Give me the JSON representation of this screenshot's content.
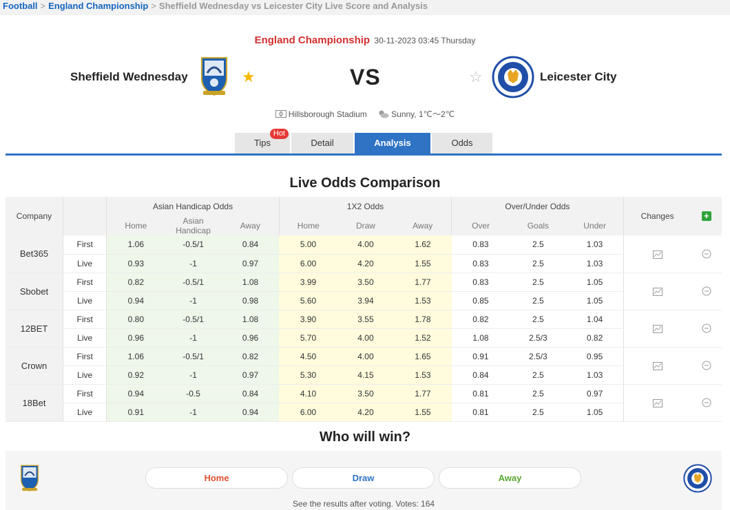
{
  "breadcrumb": {
    "football": "Football",
    "league": "England Championship",
    "current": "Sheffield Wednesday vs Leicester City Live Score and Analysis",
    "sep": ">"
  },
  "match": {
    "league": "England Championship",
    "datetime": "30-11-2023 03:45 Thursday",
    "home": "Sheffield Wednesday",
    "away": "Leicester City",
    "vs": "VS",
    "venue": "Hillsborough Stadium",
    "weather": "Sunny, 1℃～2℃",
    "home_favorite": true,
    "away_favorite": false
  },
  "tabs": [
    {
      "label": "Tips",
      "badge": "Hot"
    },
    {
      "label": "Detail"
    },
    {
      "label": "Analysis",
      "active": true
    },
    {
      "label": "Odds"
    }
  ],
  "odds": {
    "title": "Live Odds Comparison",
    "headers": {
      "company": "Company",
      "asian": "Asian Handicap Odds",
      "x12": "1X2 Odds",
      "ou": "Over/Under Odds",
      "changes": "Changes",
      "asian_sub": [
        "Home",
        "Asian Handicap",
        "Away"
      ],
      "x12_sub": [
        "Home",
        "Draw",
        "Away"
      ],
      "ou_sub": [
        "Over",
        "Goals",
        "Under"
      ]
    },
    "rows": [
      {
        "company": "Bet365",
        "lines": [
          {
            "label": "First",
            "ah": [
              "1.06",
              "-0.5/1",
              "0.84"
            ],
            "x12": [
              "5.00",
              "4.00",
              "1.62"
            ],
            "ou": [
              "0.83",
              "2.5",
              "1.03"
            ]
          },
          {
            "label": "Live",
            "ah": [
              "0.93",
              "-1",
              "0.97"
            ],
            "x12": [
              "6.00",
              "4.20",
              "1.55"
            ],
            "ou": [
              "0.83",
              "2.5",
              "1.03"
            ]
          }
        ]
      },
      {
        "company": "Sbobet",
        "lines": [
          {
            "label": "First",
            "ah": [
              "0.82",
              "-0.5/1",
              "1.08"
            ],
            "x12": [
              "3.99",
              "3.50",
              "1.77"
            ],
            "ou": [
              "0.83",
              "2.5",
              "1.05"
            ]
          },
          {
            "label": "Live",
            "ah": [
              "0.94",
              "-1",
              "0.98"
            ],
            "x12": [
              "5.60",
              "3.94",
              "1.53"
            ],
            "ou": [
              "0.85",
              "2.5",
              "1.05"
            ]
          }
        ]
      },
      {
        "company": "12BET",
        "lines": [
          {
            "label": "First",
            "ah": [
              "0.80",
              "-0.5/1",
              "1.08"
            ],
            "x12": [
              "3.90",
              "3.55",
              "1.78"
            ],
            "ou": [
              "0.82",
              "2.5",
              "1.04"
            ]
          },
          {
            "label": "Live",
            "ah": [
              "0.96",
              "-1",
              "0.96"
            ],
            "x12": [
              "5.70",
              "4.00",
              "1.52"
            ],
            "ou": [
              "1.08",
              "2.5/3",
              "0.82"
            ]
          }
        ]
      },
      {
        "company": "Crown",
        "lines": [
          {
            "label": "First",
            "ah": [
              "1.06",
              "-0.5/1",
              "0.82"
            ],
            "x12": [
              "4.50",
              "4.00",
              "1.65"
            ],
            "ou": [
              "0.91",
              "2.5/3",
              "0.95"
            ]
          },
          {
            "label": "Live",
            "ah": [
              "0.92",
              "-1",
              "0.97"
            ],
            "x12": [
              "5.30",
              "4.15",
              "1.53"
            ],
            "ou": [
              "0.84",
              "2.5",
              "1.03"
            ]
          }
        ]
      },
      {
        "company": "18Bet",
        "lines": [
          {
            "label": "First",
            "ah": [
              "0.94",
              "-0.5",
              "0.84"
            ],
            "x12": [
              "4.10",
              "3.50",
              "1.77"
            ],
            "ou": [
              "0.81",
              "2.5",
              "0.97"
            ]
          },
          {
            "label": "Live",
            "ah": [
              "0.91",
              "-1",
              "0.94"
            ],
            "x12": [
              "6.00",
              "4.20",
              "1.55"
            ],
            "ou": [
              "0.81",
              "2.5",
              "1.05"
            ]
          }
        ]
      }
    ]
  },
  "vote": {
    "title": "Who will win?",
    "home": "Home",
    "draw": "Draw",
    "away": "Away",
    "note": "See the results after voting. Votes: 164"
  },
  "colors": {
    "accent": "#2e73c4",
    "league_red": "#d32f2f",
    "home_vote": "#e0502f",
    "draw_vote": "#2e73c4",
    "away_vote": "#59a832"
  }
}
